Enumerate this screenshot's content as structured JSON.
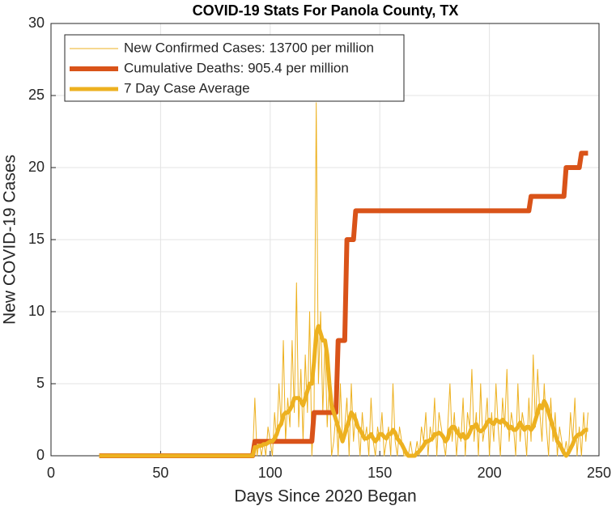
{
  "chart_data": {
    "type": "line",
    "title": "COVID-19 Stats For Panola County, TX",
    "xlabel": "Days Since 2020 Began",
    "ylabel": "New COVID-19 Cases",
    "xlim": [
      0,
      250
    ],
    "xticks": [
      0,
      50,
      100,
      150,
      200,
      250
    ],
    "ylim": [
      0,
      30
    ],
    "yticks": [
      0,
      5,
      10,
      15,
      20,
      25,
      30
    ],
    "grid": true,
    "legend": "upper left",
    "x": [
      22,
      23,
      24,
      25,
      26,
      27,
      28,
      29,
      30,
      31,
      32,
      33,
      34,
      35,
      36,
      37,
      38,
      39,
      40,
      41,
      42,
      43,
      44,
      45,
      46,
      47,
      48,
      49,
      50,
      51,
      52,
      53,
      54,
      55,
      56,
      57,
      58,
      59,
      60,
      61,
      62,
      63,
      64,
      65,
      66,
      67,
      68,
      69,
      70,
      71,
      72,
      73,
      74,
      75,
      76,
      77,
      78,
      79,
      80,
      81,
      82,
      83,
      84,
      85,
      86,
      87,
      88,
      89,
      90,
      91,
      92,
      93,
      94,
      95,
      96,
      97,
      98,
      99,
      100,
      101,
      102,
      103,
      104,
      105,
      106,
      107,
      108,
      109,
      110,
      111,
      112,
      113,
      114,
      115,
      116,
      117,
      118,
      119,
      120,
      121,
      122,
      123,
      124,
      125,
      126,
      127,
      128,
      129,
      130,
      131,
      132,
      133,
      134,
      135,
      136,
      137,
      138,
      139,
      140,
      141,
      142,
      143,
      144,
      145,
      146,
      147,
      148,
      149,
      150,
      151,
      152,
      153,
      154,
      155,
      156,
      157,
      158,
      159,
      160,
      161,
      162,
      163,
      164,
      165,
      166,
      167,
      168,
      169,
      170,
      171,
      172,
      173,
      174,
      175,
      176,
      177,
      178,
      179,
      180,
      181,
      182,
      183,
      184,
      185,
      186,
      187,
      188,
      189,
      190,
      191,
      192,
      193,
      194,
      195,
      196,
      197,
      198,
      199,
      200,
      201,
      202,
      203,
      204,
      205,
      206,
      207,
      208,
      209,
      210,
      211,
      212,
      213,
      214,
      215,
      216,
      217,
      218,
      219,
      220,
      221,
      222,
      223,
      224,
      225,
      226,
      227,
      228,
      229,
      230,
      231,
      232,
      233,
      234,
      235,
      236,
      237,
      238,
      239,
      240,
      241,
      242,
      243,
      244,
      245
    ],
    "series": [
      {
        "name": "New Confirmed Cases: 13700 per million",
        "color": "#EDB120",
        "width": 1,
        "values": [
          0,
          0,
          0,
          0,
          0,
          0,
          0,
          0,
          0,
          0,
          0,
          0,
          0,
          0,
          0,
          0,
          0,
          0,
          0,
          0,
          0,
          0,
          0,
          0,
          0,
          0,
          0,
          0,
          0,
          0,
          0,
          0,
          0,
          0,
          0,
          0,
          0,
          0,
          0,
          0,
          0,
          0,
          0,
          0,
          0,
          0,
          0,
          0,
          0,
          0,
          0,
          0,
          0,
          0,
          0,
          0,
          0,
          0,
          0,
          0,
          0,
          0,
          0,
          0,
          0,
          0,
          0,
          0,
          0,
          0,
          0,
          4,
          0,
          1,
          0,
          1,
          0,
          2,
          1,
          0,
          3,
          1,
          5,
          2,
          8,
          1,
          4,
          2,
          8,
          3,
          12,
          2,
          6,
          1,
          7,
          3,
          10,
          0,
          3,
          24.5,
          5,
          10,
          3,
          8,
          2,
          5,
          0,
          1,
          3,
          0,
          5,
          1,
          2,
          4,
          0,
          5,
          1,
          3,
          2,
          0,
          3,
          1,
          2,
          0,
          4,
          1,
          0,
          2,
          1,
          3,
          0,
          1,
          2,
          0,
          5,
          1,
          0,
          2,
          1,
          0,
          0,
          0,
          1,
          0,
          0,
          1,
          0,
          2,
          1,
          3,
          0,
          2,
          1,
          4,
          0,
          3,
          2,
          1,
          0,
          2,
          5,
          1,
          3,
          0,
          2,
          1,
          4,
          0,
          3,
          2,
          6,
          1,
          3,
          0,
          5,
          1,
          2,
          4,
          0,
          3,
          1,
          5,
          2,
          0,
          4,
          2,
          6,
          1,
          3,
          2,
          0,
          5,
          1,
          3,
          2,
          0,
          4,
          1,
          7,
          2,
          6,
          3,
          1,
          5,
          2,
          0,
          4,
          1,
          3,
          0,
          2,
          1,
          0,
          1,
          0,
          3,
          1,
          4,
          0,
          2,
          0,
          3,
          1,
          3
        ]
      },
      {
        "name": "Cumulative Deaths: 905.4 per million",
        "color": "#D95319",
        "width": 6,
        "values": [
          0,
          0,
          0,
          0,
          0,
          0,
          0,
          0,
          0,
          0,
          0,
          0,
          0,
          0,
          0,
          0,
          0,
          0,
          0,
          0,
          0,
          0,
          0,
          0,
          0,
          0,
          0,
          0,
          0,
          0,
          0,
          0,
          0,
          0,
          0,
          0,
          0,
          0,
          0,
          0,
          0,
          0,
          0,
          0,
          0,
          0,
          0,
          0,
          0,
          0,
          0,
          0,
          0,
          0,
          0,
          0,
          0,
          0,
          0,
          0,
          0,
          0,
          0,
          0,
          0,
          0,
          0,
          0,
          0,
          0,
          0,
          1,
          1,
          1,
          1,
          1,
          1,
          1,
          1,
          1,
          1,
          1,
          1,
          1,
          1,
          1,
          1,
          1,
          1,
          1,
          1,
          1,
          1,
          1,
          1,
          1,
          1,
          1,
          3,
          3,
          3,
          3,
          3,
          3,
          3,
          3,
          3,
          3,
          3,
          8,
          8,
          8,
          8,
          15,
          15,
          15,
          15,
          17,
          17,
          17,
          17,
          17,
          17,
          17,
          17,
          17,
          17,
          17,
          17,
          17,
          17,
          17,
          17,
          17,
          17,
          17,
          17,
          17,
          17,
          17,
          17,
          17,
          17,
          17,
          17,
          17,
          17,
          17,
          17,
          17,
          17,
          17,
          17,
          17,
          17,
          17,
          17,
          17,
          17,
          17,
          17,
          17,
          17,
          17,
          17,
          17,
          17,
          17,
          17,
          17,
          17,
          17,
          17,
          17,
          17,
          17,
          17,
          17,
          17,
          17,
          17,
          17,
          17,
          17,
          17,
          17,
          17,
          17,
          17,
          17,
          17,
          17,
          17,
          17,
          17,
          17,
          17,
          18,
          18,
          18,
          18,
          18,
          18,
          18,
          18,
          18,
          18,
          18,
          18,
          18,
          18,
          18,
          18,
          20,
          20,
          20,
          20,
          20,
          20,
          20,
          21,
          21,
          21,
          21
        ]
      },
      {
        "name": "7 Day Case Average",
        "color": "#EDB120",
        "width": 5,
        "values": [
          0,
          0,
          0,
          0,
          0,
          0,
          0,
          0,
          0,
          0,
          0,
          0,
          0,
          0,
          0,
          0,
          0,
          0,
          0,
          0,
          0,
          0,
          0,
          0,
          0,
          0,
          0,
          0,
          0,
          0,
          0,
          0,
          0,
          0,
          0,
          0,
          0,
          0,
          0,
          0,
          0,
          0,
          0,
          0,
          0,
          0,
          0,
          0,
          0,
          0,
          0,
          0,
          0,
          0,
          0,
          0,
          0,
          0,
          0,
          0,
          0,
          0,
          0,
          0,
          0,
          0,
          0,
          0,
          0,
          0,
          0,
          0.6,
          0.6,
          0.7,
          0.7,
          0.8,
          0.8,
          0.9,
          1,
          1,
          1.2,
          1.5,
          2,
          2.2,
          2.8,
          3,
          3,
          3.2,
          3.5,
          4,
          4,
          4,
          3.8,
          3.5,
          4,
          4.5,
          5,
          5,
          6.5,
          8.5,
          9,
          8.5,
          8,
          8,
          7,
          5,
          3.5,
          3,
          2.5,
          2,
          1.5,
          1,
          1.5,
          2,
          2.5,
          3,
          2.8,
          2.5,
          2,
          1.8,
          1.5,
          1.2,
          1.2,
          1.3,
          1.5,
          1.2,
          1,
          1.2,
          1.5,
          1.5,
          1.3,
          1.2,
          1.5,
          1.5,
          1.8,
          1.6,
          1.2,
          1,
          0.8,
          0.5,
          0.2,
          0,
          0,
          0,
          0,
          0.2,
          0.3,
          0.5,
          0.7,
          1,
          1,
          1.1,
          1.2,
          1.5,
          1.5,
          1.6,
          1.5,
          1.3,
          1,
          1.2,
          1.8,
          2,
          2,
          1.7,
          1.5,
          1.3,
          1.5,
          1.2,
          1.3,
          1.6,
          2,
          2,
          2.2,
          1.8,
          1.7,
          1.8,
          2,
          2.3,
          2.5,
          2.3,
          2.2,
          2.5,
          2.4,
          2.3,
          2.5,
          2.3,
          2.2,
          1.9,
          2,
          1.8,
          1.8,
          2,
          2.3,
          2,
          1.8,
          2,
          2,
          1.8,
          2,
          2.5,
          3,
          3.5,
          3.3,
          3.8,
          3.5,
          3,
          2.5,
          2,
          1.5,
          1,
          0.8,
          0.5,
          0.2,
          0,
          0.2,
          0.5,
          0.8,
          1.2,
          1.4,
          1.5,
          1.5,
          1.7,
          1.8,
          1.8
        ]
      }
    ]
  }
}
